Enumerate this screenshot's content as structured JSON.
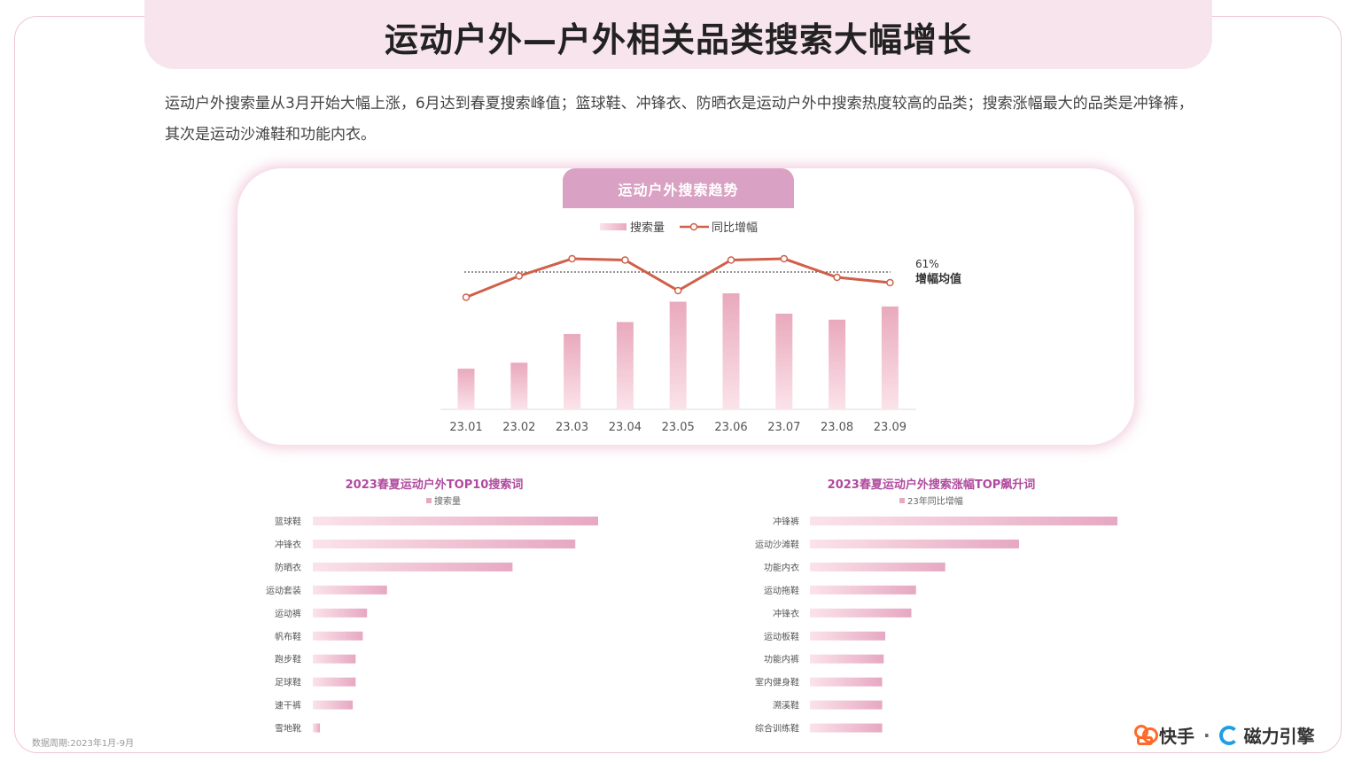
{
  "title": "运动户外—户外相关品类搜索大幅增长",
  "intro": "运动户外搜索量从3月开始大幅上涨，6月达到春夏搜索峰值；篮球鞋、冲锋衣、防晒衣是运动户外中搜索热度较高的品类；搜索涨幅最大的品类是冲锋裤，其次是运动沙滩鞋和功能内衣。",
  "colors": {
    "accent": "#d9a1c3",
    "line": "#d0604a",
    "bar_light": "#fbe3ea",
    "bar_dark": "#e9a9bd",
    "title_band": "#f7e4ec",
    "subtitle": "#b04a9e"
  },
  "chart_data": [
    {
      "type": "bar",
      "title": "运动户外搜索趋势",
      "categories": [
        "23.01",
        "23.02",
        "23.03",
        "23.04",
        "23.05",
        "23.06",
        "23.07",
        "23.08",
        "23.09"
      ],
      "series": [
        {
          "name": "搜索量",
          "type": "bar",
          "values": [
            34,
            39,
            63,
            73,
            90,
            97,
            80,
            75,
            86
          ]
        },
        {
          "name": "同比增幅",
          "type": "line",
          "values": [
            0.27,
            0.43,
            0.56,
            0.55,
            0.32,
            0.55,
            0.56,
            0.42,
            0.38
          ]
        }
      ],
      "reference_line": {
        "value": 0.61,
        "label": "61%",
        "label2": "增幅均值"
      },
      "legend": "top",
      "grid": false
    },
    {
      "type": "bar",
      "orientation": "horizontal",
      "title": "2023春夏运动户外TOP10搜索词",
      "legend_label": "搜索量",
      "categories": [
        "篮球鞋",
        "冲锋衣",
        "防晒衣",
        "运动套装",
        "运动裤",
        "帆布鞋",
        "跑步鞋",
        "足球鞋",
        "速干裤",
        "雪地靴"
      ],
      "values": [
        100,
        92,
        70,
        26,
        19,
        17.5,
        15,
        15,
        14,
        2.5
      ],
      "legend": "top",
      "grid": false
    },
    {
      "type": "bar",
      "orientation": "horizontal",
      "title": "2023春夏运动户外搜索涨幅TOP飙升词",
      "legend_label": "23年同比增幅",
      "categories": [
        "冲锋裤",
        "运动沙滩鞋",
        "功能内衣",
        "运动拖鞋",
        "冲锋衣",
        "运动板鞋",
        "功能内裤",
        "室内健身鞋",
        "溯溪鞋",
        "综合训练鞋"
      ],
      "values": [
        100,
        68,
        44,
        34.5,
        33,
        24.5,
        24,
        23.5,
        23.5,
        23.5
      ],
      "legend": "top",
      "grid": false
    }
  ],
  "footer": {
    "note": "数据周期:2023年1月-9月",
    "brand1": "快手",
    "separator": "·",
    "brand2": "磁力引擎"
  },
  "icons": {
    "brand1": "kuaishou-logo-icon",
    "brand2": "cili-logo-icon"
  }
}
